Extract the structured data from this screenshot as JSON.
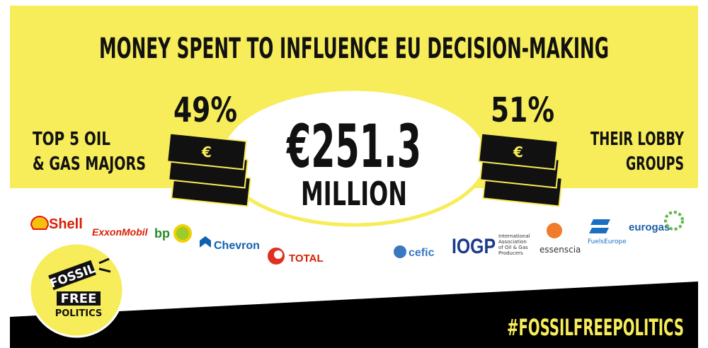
{
  "header": {
    "title": "MONEY SPENT TO INFLUENCE EU DECISION-MAKING"
  },
  "left": {
    "percent": "49%",
    "label_lines": [
      "TOP 5 OIL",
      "& GAS MAJORS"
    ]
  },
  "right": {
    "percent": "51%",
    "label_lines": [
      "THEIR LOBBY",
      "GROUPS"
    ]
  },
  "total": {
    "amount": "€251.3",
    "unit": "MILLION"
  },
  "currency_symbol": "€",
  "companies": [
    "Shell",
    "ExxonMobil",
    "bp",
    "Chevron",
    "TOTAL"
  ],
  "lobby_groups": {
    "cefic": "cefic",
    "iogp": {
      "acronym": "IOGP",
      "lines": [
        "International",
        "Association",
        "of Oil & Gas",
        "Producers"
      ]
    },
    "essenscia": "essenscia",
    "fuels_europe": "FuelsEurope",
    "eurogas": "eurogas"
  },
  "badge": {
    "lines": [
      "FOSSIL",
      "FREE",
      "POLITICS"
    ]
  },
  "hashtag": "#FOSSILFREEPOLITICS"
}
